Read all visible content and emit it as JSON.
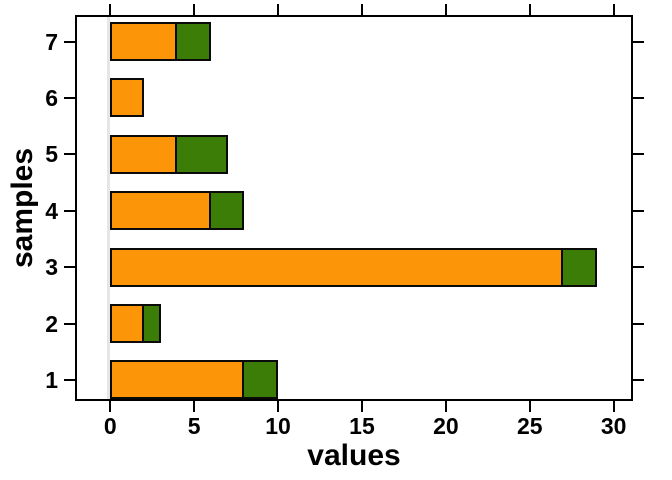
{
  "chart_data": {
    "type": "bar",
    "orientation": "horizontal",
    "stacked": true,
    "title": "",
    "xlabel": "values",
    "ylabel": "samples",
    "categories": [
      "1",
      "2",
      "3",
      "4",
      "5",
      "6",
      "7"
    ],
    "series": [
      {
        "name": "orange-segment",
        "color": "#fc9608",
        "values": [
          8,
          2,
          27,
          6,
          4,
          2,
          4
        ]
      },
      {
        "name": "green-segment",
        "color": "#3b7d06",
        "values": [
          2,
          1,
          2,
          2,
          3,
          0,
          2
        ]
      }
    ],
    "totals": [
      10,
      3,
      29,
      8,
      7,
      2,
      6
    ],
    "x_ticks": [
      0,
      5,
      10,
      15,
      20,
      25,
      30
    ],
    "xlim": [
      -2.1,
      31.15
    ],
    "bar_border_color": "#0a0a0a",
    "baseline_color": "#e6e6e6",
    "grid": false,
    "legend": "none",
    "frame": "box",
    "ticks_mirrored": true
  }
}
